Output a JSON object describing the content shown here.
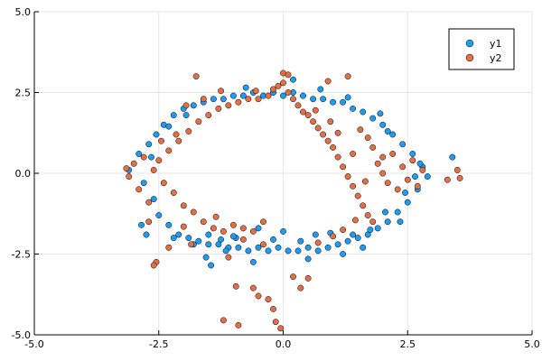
{
  "chart_data": {
    "type": "scatter",
    "xlim": [
      -5,
      5
    ],
    "ylim": [
      -5,
      5
    ],
    "xticks": [
      "-5.0",
      "-2.5",
      "0.0",
      "2.5",
      "5.0"
    ],
    "yticks": [
      "-5.0",
      "-2.5",
      "0.0",
      "2.5",
      "5.0"
    ],
    "xtick_values": [
      -5,
      -2.5,
      0,
      2.5,
      5
    ],
    "ytick_values": [
      -5,
      -2.5,
      0,
      2.5,
      5
    ],
    "grid": true,
    "legend_position": "top-right",
    "series": [
      {
        "name": "y1",
        "color": "#1f9bf0",
        "points": [
          [
            -2.9,
            0.6
          ],
          [
            -2.8,
            -0.3
          ],
          [
            -2.7,
            0.9
          ],
          [
            -2.6,
            -0.8
          ],
          [
            -2.55,
            1.2
          ],
          [
            -2.5,
            -1.3
          ],
          [
            -2.4,
            1.5
          ],
          [
            -2.3,
            -1.6
          ],
          [
            -2.2,
            1.8
          ],
          [
            -2.1,
            -1.9
          ],
          [
            -2.0,
            2.0
          ],
          [
            -1.9,
            -2.0
          ],
          [
            -1.8,
            2.1
          ],
          [
            -1.7,
            -2.1
          ],
          [
            -1.6,
            2.2
          ],
          [
            -1.5,
            -2.2
          ],
          [
            -1.4,
            2.3
          ],
          [
            -1.3,
            -2.2
          ],
          [
            -1.2,
            2.3
          ],
          [
            -1.1,
            -2.3
          ],
          [
            -1.0,
            2.4
          ],
          [
            -0.9,
            -2.3
          ],
          [
            -0.8,
            2.4
          ],
          [
            -0.7,
            -2.4
          ],
          [
            -0.6,
            2.5
          ],
          [
            -0.5,
            -2.3
          ],
          [
            -0.4,
            2.4
          ],
          [
            -0.3,
            -2.4
          ],
          [
            -0.2,
            2.5
          ],
          [
            -0.1,
            -2.3
          ],
          [
            0.0,
            2.4
          ],
          [
            0.1,
            -2.4
          ],
          [
            0.2,
            2.5
          ],
          [
            0.3,
            -2.4
          ],
          [
            0.4,
            2.4
          ],
          [
            0.5,
            -2.3
          ],
          [
            0.6,
            2.3
          ],
          [
            0.7,
            -2.4
          ],
          [
            0.8,
            2.3
          ],
          [
            0.9,
            -2.3
          ],
          [
            1.0,
            2.2
          ],
          [
            1.1,
            -2.2
          ],
          [
            1.2,
            2.2
          ],
          [
            1.3,
            -2.1
          ],
          [
            1.4,
            2.0
          ],
          [
            1.5,
            -2.0
          ],
          [
            1.6,
            1.9
          ],
          [
            1.7,
            -1.9
          ],
          [
            1.8,
            1.7
          ],
          [
            1.9,
            -1.7
          ],
          [
            2.0,
            1.5
          ],
          [
            2.1,
            -1.5
          ],
          [
            2.2,
            1.2
          ],
          [
            2.3,
            -1.2
          ],
          [
            2.4,
            0.9
          ],
          [
            2.5,
            -0.9
          ],
          [
            2.6,
            0.6
          ],
          [
            2.7,
            -0.5
          ],
          [
            2.8,
            0.2
          ],
          [
            2.9,
            -0.1
          ],
          [
            3.4,
            0.5
          ],
          [
            -3.1,
            0.1
          ],
          [
            -2.85,
            -1.6
          ],
          [
            -2.75,
            -1.9
          ],
          [
            -1.55,
            -2.6
          ],
          [
            -1.45,
            -2.85
          ],
          [
            -1.15,
            -2.4
          ],
          [
            -0.6,
            -2.75
          ],
          [
            0.5,
            -2.65
          ],
          [
            1.2,
            -2.5
          ],
          [
            1.6,
            -2.3
          ],
          [
            2.35,
            -1.5
          ],
          [
            2.65,
            -0.1
          ],
          [
            2.75,
            0.3
          ],
          [
            -0.75,
            2.65
          ],
          [
            0.2,
            2.9
          ],
          [
            0.75,
            2.6
          ],
          [
            1.3,
            2.35
          ],
          [
            1.95,
            1.85
          ],
          [
            -1.95,
            1.8
          ],
          [
            -2.3,
            1.45
          ],
          [
            -2.65,
            0.5
          ],
          [
            -2.2,
            -2.0
          ],
          [
            -1.8,
            -2.2
          ],
          [
            -0.95,
            -2.0
          ],
          [
            0.95,
            -1.85
          ],
          [
            2.05,
            -1.2
          ],
          [
            2.45,
            -0.6
          ],
          [
            2.1,
            1.3
          ],
          [
            -1.0,
            -1.95
          ],
          [
            -0.2,
            -2.05
          ],
          [
            0.35,
            -2.1
          ],
          [
            1.4,
            -1.9
          ],
          [
            -0.5,
            -1.7
          ],
          [
            0.0,
            -1.8
          ],
          [
            0.65,
            -1.9
          ],
          [
            -1.5,
            -1.9
          ],
          [
            -1.25,
            -2.05
          ],
          [
            1.75,
            -1.75
          ]
        ]
      },
      {
        "name": "y2",
        "color": "#e26f46",
        "points": [
          [
            -3.1,
            -0.1
          ],
          [
            -3.0,
            0.3
          ],
          [
            -2.9,
            -0.5
          ],
          [
            -2.8,
            0.5
          ],
          [
            -2.7,
            -0.9
          ],
          [
            -2.6,
            0.1
          ],
          [
            -2.5,
            0.4
          ],
          [
            -2.4,
            -0.3
          ],
          [
            -2.3,
            0.7
          ],
          [
            -2.2,
            -0.6
          ],
          [
            -2.1,
            1.0
          ],
          [
            -2.0,
            -1.0
          ],
          [
            -1.9,
            1.3
          ],
          [
            -1.8,
            -1.2
          ],
          [
            -1.7,
            1.6
          ],
          [
            -1.6,
            -1.5
          ],
          [
            -1.5,
            1.8
          ],
          [
            -1.4,
            -1.7
          ],
          [
            -1.3,
            2.0
          ],
          [
            -1.2,
            -1.8
          ],
          [
            -1.1,
            2.1
          ],
          [
            -1.0,
            -1.6
          ],
          [
            -0.9,
            2.2
          ],
          [
            -0.8,
            -1.7
          ],
          [
            -0.7,
            2.3
          ],
          [
            -0.6,
            -1.8
          ],
          [
            -0.5,
            2.3
          ],
          [
            -0.4,
            -1.5
          ],
          [
            -0.3,
            2.4
          ],
          [
            -0.2,
            2.6
          ],
          [
            -0.1,
            2.7
          ],
          [
            0.0,
            2.8
          ],
          [
            0.1,
            2.5
          ],
          [
            0.2,
            2.3
          ],
          [
            0.3,
            2.1
          ],
          [
            0.4,
            1.9
          ],
          [
            0.5,
            1.8
          ],
          [
            0.6,
            1.6
          ],
          [
            0.7,
            1.4
          ],
          [
            0.8,
            1.2
          ],
          [
            0.9,
            1.0
          ],
          [
            1.0,
            0.8
          ],
          [
            1.1,
            0.5
          ],
          [
            1.2,
            0.2
          ],
          [
            1.3,
            -0.1
          ],
          [
            1.4,
            -0.4
          ],
          [
            1.5,
            -0.7
          ],
          [
            1.6,
            -1.0
          ],
          [
            1.7,
            -1.3
          ],
          [
            1.8,
            -1.5
          ],
          [
            1.9,
            0.3
          ],
          [
            2.0,
            0.0
          ],
          [
            2.1,
            -0.3
          ],
          [
            2.2,
            0.6
          ],
          [
            2.3,
            -0.5
          ],
          [
            2.4,
            0.2
          ],
          [
            2.5,
            -0.2
          ],
          [
            2.6,
            0.4
          ],
          [
            2.7,
            -0.4
          ],
          [
            2.8,
            0.1
          ],
          [
            3.5,
            0.1
          ],
          [
            3.55,
            -0.15
          ],
          [
            3.3,
            -0.2
          ],
          [
            -3.15,
            0.15
          ],
          [
            0.0,
            3.1
          ],
          [
            -1.95,
            2.1
          ],
          [
            -1.6,
            2.3
          ],
          [
            -0.6,
            -3.55
          ],
          [
            -0.3,
            -3.9
          ],
          [
            -0.2,
            -4.2
          ],
          [
            -0.15,
            -4.6
          ],
          [
            -0.05,
            -4.8
          ],
          [
            -1.2,
            -4.55
          ],
          [
            -0.9,
            -4.7
          ],
          [
            -0.95,
            -3.5
          ],
          [
            -0.5,
            -3.8
          ],
          [
            0.2,
            -3.2
          ],
          [
            0.35,
            -3.55
          ],
          [
            0.5,
            -3.25
          ],
          [
            -2.3,
            -2.3
          ],
          [
            -2.55,
            -2.75
          ],
          [
            -2.6,
            -2.85
          ],
          [
            -1.85,
            -2.2
          ],
          [
            -1.1,
            -2.6
          ],
          [
            -0.4,
            -2.2
          ],
          [
            0.7,
            -2.15
          ],
          [
            1.0,
            -1.95
          ],
          [
            1.2,
            -1.75
          ],
          [
            1.3,
            3.0
          ],
          [
            0.9,
            2.85
          ],
          [
            0.1,
            3.05
          ],
          [
            -0.55,
            2.55
          ],
          [
            -1.75,
            3.0
          ],
          [
            -1.25,
            2.55
          ],
          [
            -2.15,
            1.2
          ],
          [
            -2.45,
            1.0
          ],
          [
            -2.7,
            -1.5
          ],
          [
            -2.0,
            -1.65
          ],
          [
            -1.35,
            -1.35
          ],
          [
            -0.8,
            -2.05
          ],
          [
            1.7,
            1.1
          ],
          [
            1.55,
            1.35
          ],
          [
            1.4,
            0.6
          ],
          [
            1.1,
            1.25
          ],
          [
            0.95,
            1.6
          ],
          [
            0.65,
            1.95
          ],
          [
            1.8,
            0.8
          ],
          [
            2.0,
            0.5
          ],
          [
            1.65,
            -0.25
          ],
          [
            1.45,
            -1.45
          ]
        ]
      }
    ]
  }
}
